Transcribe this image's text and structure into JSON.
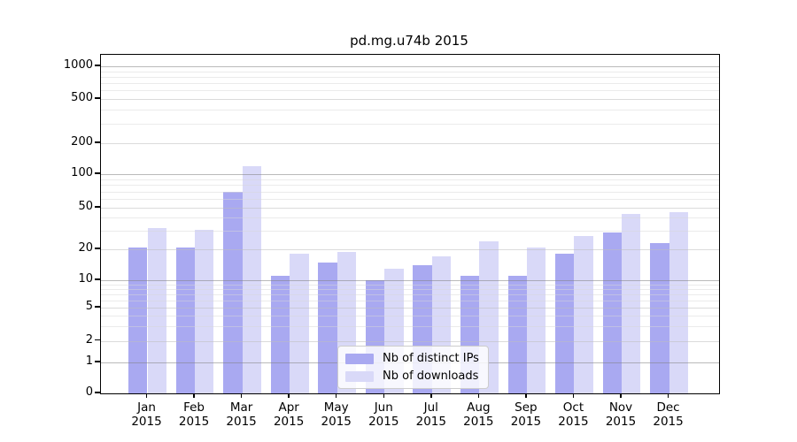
{
  "chart_data": {
    "type": "bar",
    "title": "pd.mg.u74b 2015",
    "xlabel": "",
    "ylabel": "",
    "year_label": "2015",
    "categories": [
      "Jan",
      "Feb",
      "Mar",
      "Apr",
      "May",
      "Jun",
      "Jul",
      "Aug",
      "Sep",
      "Oct",
      "Nov",
      "Dec"
    ],
    "series": [
      {
        "name": "Nb of distinct IPs",
        "color": "#a9a9f1",
        "values": [
          21,
          21,
          70,
          11,
          15,
          10,
          14,
          11,
          11,
          18,
          29,
          23
        ]
      },
      {
        "name": "Nb of downloads",
        "color": "#d9d9f8",
        "values": [
          32,
          31,
          120,
          18,
          19,
          13,
          17,
          24,
          21,
          27,
          44,
          45
        ]
      }
    ],
    "yticks": [
      1000,
      500,
      200,
      100,
      50,
      20,
      10,
      5,
      2,
      1,
      0
    ],
    "minor_gridline_values": [
      3,
      4,
      6,
      7,
      8,
      9,
      30,
      40,
      60,
      70,
      80,
      90,
      300,
      400,
      600,
      700,
      800,
      900
    ],
    "decade_gridline_values": [
      1,
      10,
      100,
      1000
    ],
    "scale": "symlog",
    "ylim": [
      0,
      1300
    ],
    "grid": true,
    "legend_position": "lower center"
  },
  "legend": {
    "items": [
      {
        "label": "Nb of distinct IPs"
      },
      {
        "label": "Nb of downloads"
      }
    ]
  }
}
